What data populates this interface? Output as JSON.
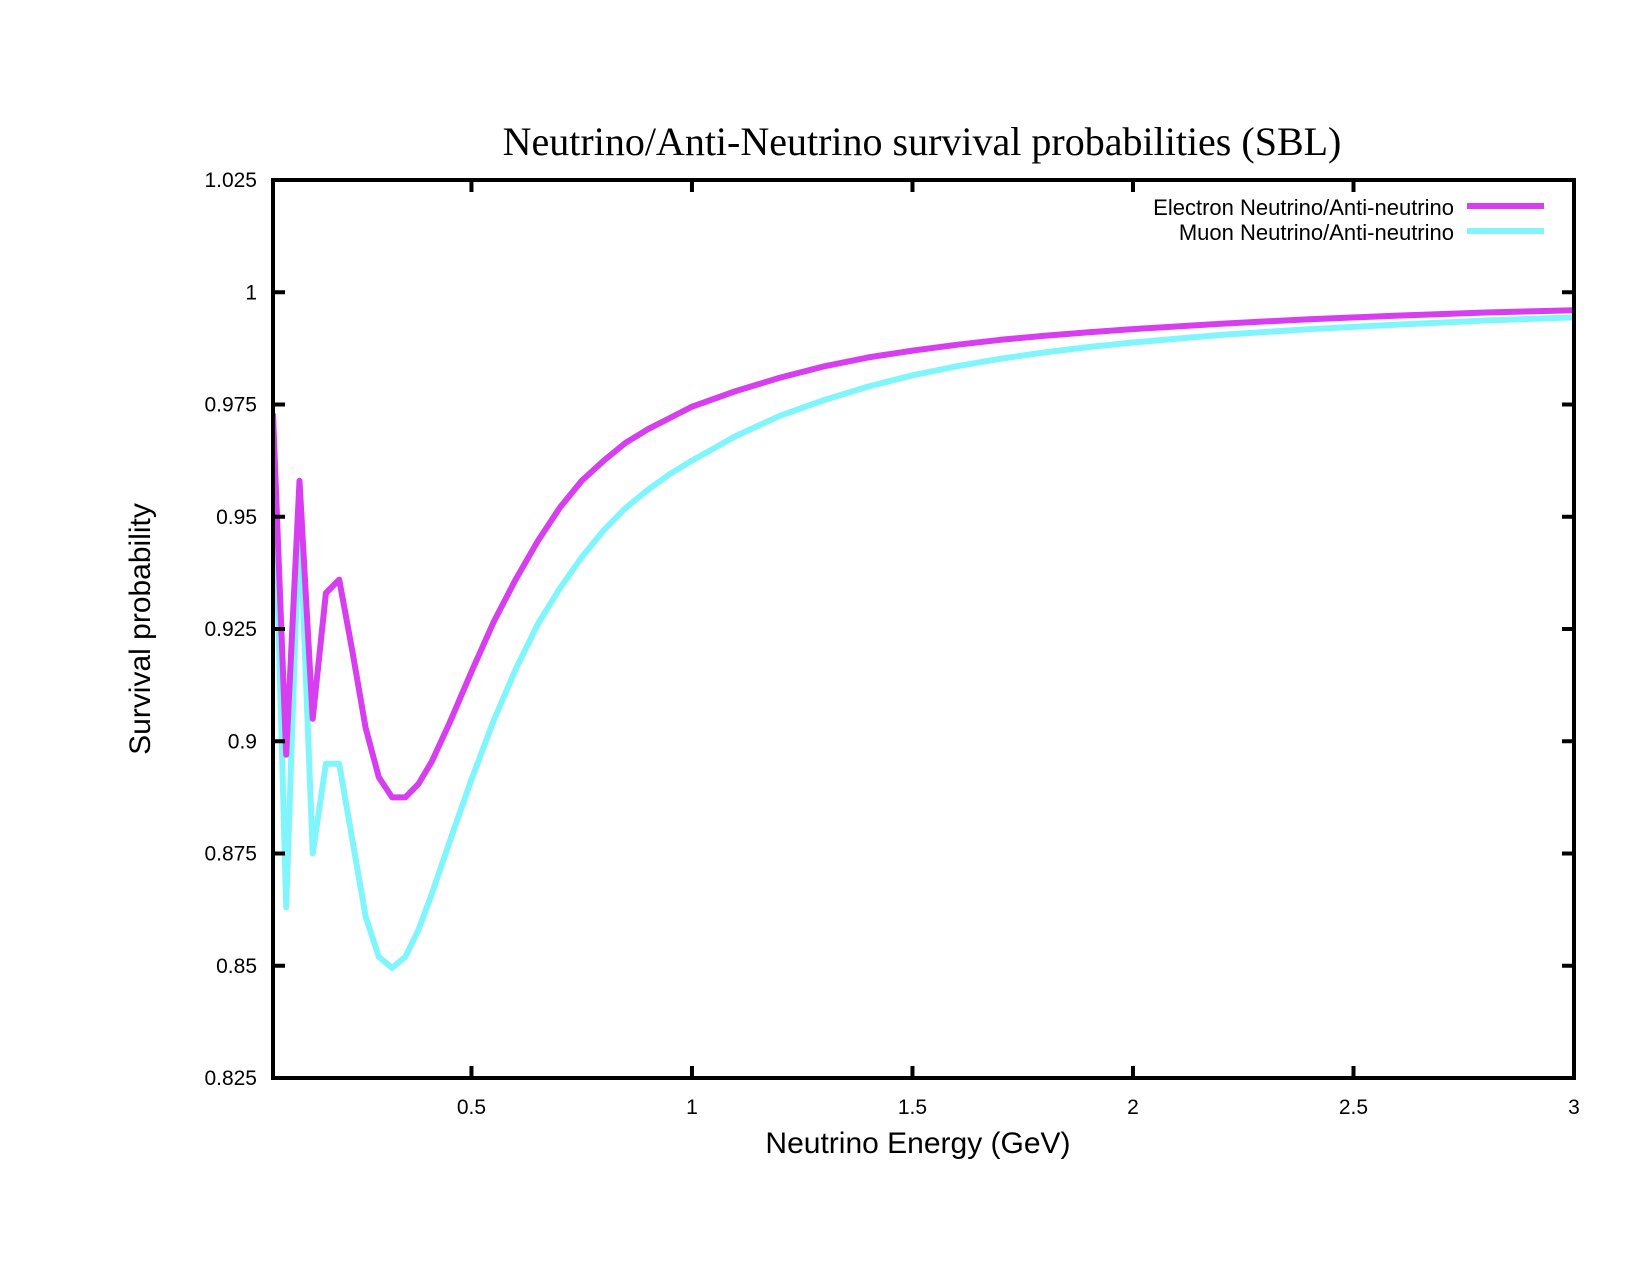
{
  "chart_data": {
    "type": "line",
    "title": "Neutrino/Anti-Neutrino survival probabilities (SBL)",
    "xlabel": "Neutrino Energy (GeV)",
    "ylabel": "Survival probability",
    "xlim": [
      0.05,
      3
    ],
    "ylim": [
      0.825,
      1.025
    ],
    "xticks": [
      0.5,
      1,
      1.5,
      2,
      2.5,
      3
    ],
    "xtick_labels": [
      "0.5",
      "1",
      "1.5",
      "2",
      "2.5",
      "3"
    ],
    "yticks": [
      0.825,
      0.85,
      0.875,
      0.9,
      0.925,
      0.95,
      0.975,
      1,
      1.025
    ],
    "ytick_labels": [
      "0.825",
      "0.85",
      "0.875",
      "0.9",
      "0.925",
      "0.95",
      "0.975",
      "1",
      "1.025"
    ],
    "grid": false,
    "legend_position": "top-right",
    "series": [
      {
        "name": "Electron Neutrino/Anti-neutrino",
        "color": "#d63ef0",
        "x": [
          0.05,
          0.08,
          0.11,
          0.14,
          0.17,
          0.2,
          0.23,
          0.26,
          0.29,
          0.32,
          0.35,
          0.38,
          0.41,
          0.45,
          0.5,
          0.55,
          0.6,
          0.65,
          0.7,
          0.75,
          0.8,
          0.85,
          0.9,
          0.95,
          1.0,
          1.1,
          1.2,
          1.3,
          1.4,
          1.5,
          1.6,
          1.7,
          1.8,
          1.9,
          2.0,
          2.2,
          2.4,
          2.6,
          2.8,
          3.0
        ],
        "y": [
          0.973,
          0.897,
          0.958,
          0.905,
          0.933,
          0.936,
          0.92,
          0.903,
          0.892,
          0.8875,
          0.8875,
          0.8905,
          0.8955,
          0.904,
          0.9155,
          0.9265,
          0.936,
          0.9445,
          0.952,
          0.958,
          0.9625,
          0.9665,
          0.9695,
          0.972,
          0.9745,
          0.978,
          0.981,
          0.9835,
          0.9855,
          0.987,
          0.9883,
          0.9894,
          0.9903,
          0.9911,
          0.9918,
          0.993,
          0.994,
          0.9948,
          0.9955,
          0.996
        ]
      },
      {
        "name": "Muon Neutrino/Anti-neutrino",
        "color": "#80f6fc",
        "x": [
          0.05,
          0.08,
          0.11,
          0.14,
          0.17,
          0.2,
          0.23,
          0.26,
          0.29,
          0.32,
          0.35,
          0.38,
          0.41,
          0.45,
          0.5,
          0.55,
          0.6,
          0.65,
          0.7,
          0.75,
          0.8,
          0.85,
          0.9,
          0.95,
          1.0,
          1.1,
          1.2,
          1.3,
          1.4,
          1.5,
          1.6,
          1.7,
          1.8,
          1.9,
          2.0,
          2.2,
          2.4,
          2.6,
          2.8,
          3.0
        ],
        "y": [
          0.971,
          0.863,
          0.951,
          0.875,
          0.895,
          0.895,
          0.878,
          0.861,
          0.852,
          0.8495,
          0.852,
          0.858,
          0.866,
          0.8775,
          0.8915,
          0.9045,
          0.916,
          0.926,
          0.934,
          0.941,
          0.947,
          0.952,
          0.956,
          0.9595,
          0.9625,
          0.968,
          0.9725,
          0.976,
          0.979,
          0.9815,
          0.9835,
          0.9852,
          0.9866,
          0.9878,
          0.9888,
          0.9905,
          0.9918,
          0.9928,
          0.9937,
          0.9944
        ]
      }
    ]
  }
}
